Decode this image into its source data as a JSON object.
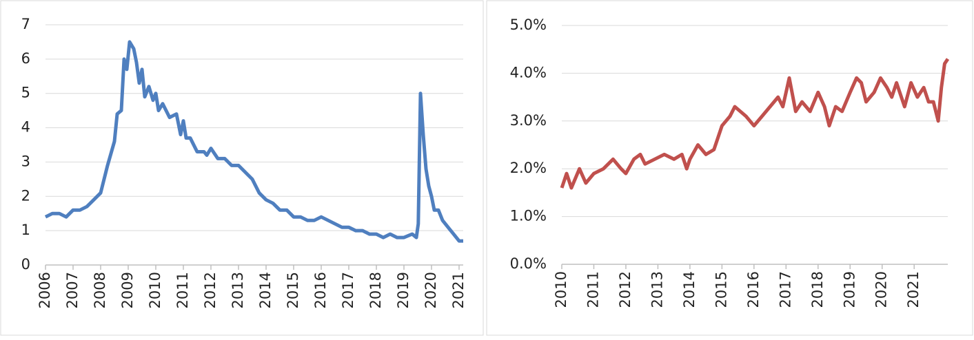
{
  "chart_data": [
    {
      "type": "line",
      "color": "#4f7fbf",
      "grid": true,
      "xlim": [
        2006,
        2021.15
      ],
      "xticks": [
        2006,
        2007,
        2008,
        2009,
        2010,
        2011,
        2012,
        2013,
        2014,
        2015,
        2016,
        2017,
        2018,
        2019,
        2020,
        2021
      ],
      "ylim": [
        0,
        7
      ],
      "yticks": [
        0,
        1,
        2,
        3,
        4,
        5,
        6,
        7
      ],
      "x": [
        2006.0,
        2006.25,
        2006.5,
        2006.75,
        2007.0,
        2007.25,
        2007.5,
        2007.75,
        2008.0,
        2008.25,
        2008.5,
        2008.6,
        2008.75,
        2008.85,
        2008.95,
        2009.05,
        2009.2,
        2009.3,
        2009.4,
        2009.5,
        2009.6,
        2009.75,
        2009.9,
        2010.0,
        2010.1,
        2010.25,
        2010.5,
        2010.75,
        2010.9,
        2011.0,
        2011.1,
        2011.25,
        2011.5,
        2011.75,
        2011.85,
        2012.0,
        2012.25,
        2012.5,
        2012.75,
        2013.0,
        2013.25,
        2013.5,
        2013.75,
        2014.0,
        2014.25,
        2014.5,
        2014.75,
        2015.0,
        2015.25,
        2015.5,
        2015.75,
        2016.0,
        2016.25,
        2016.5,
        2016.75,
        2017.0,
        2017.25,
        2017.5,
        2017.75,
        2018.0,
        2018.25,
        2018.5,
        2018.75,
        2019.0,
        2019.3,
        2019.45,
        2019.52,
        2019.6,
        2019.7,
        2019.8,
        2019.9,
        2020.0,
        2020.1,
        2020.25,
        2020.4,
        2020.6,
        2020.8,
        2021.0,
        2021.15
      ],
      "values": [
        1.4,
        1.5,
        1.5,
        1.4,
        1.6,
        1.6,
        1.7,
        1.9,
        2.1,
        2.9,
        3.6,
        4.4,
        4.5,
        6.0,
        5.7,
        6.5,
        6.3,
        5.9,
        5.3,
        5.7,
        4.9,
        5.2,
        4.8,
        5.0,
        4.5,
        4.7,
        4.3,
        4.4,
        3.8,
        4.2,
        3.7,
        3.7,
        3.3,
        3.3,
        3.2,
        3.4,
        3.1,
        3.1,
        2.9,
        2.9,
        2.7,
        2.5,
        2.1,
        1.9,
        1.8,
        1.6,
        1.6,
        1.4,
        1.4,
        1.3,
        1.3,
        1.4,
        1.3,
        1.2,
        1.1,
        1.1,
        1.0,
        1.0,
        0.9,
        0.9,
        0.8,
        0.9,
        0.8,
        0.8,
        0.9,
        0.8,
        1.2,
        5.0,
        3.8,
        2.8,
        2.3,
        2.0,
        1.6,
        1.6,
        1.3,
        1.1,
        0.9,
        0.7,
        0.7
      ]
    },
    {
      "type": "line",
      "color": "#c0504d",
      "grid": true,
      "xlim": [
        2010,
        2022.05
      ],
      "xticks": [
        2010,
        2011,
        2012,
        2013,
        2014,
        2015,
        2016,
        2017,
        2018,
        2019,
        2020,
        2021
      ],
      "ylim": [
        0,
        5
      ],
      "yticks": [
        {
          "value": 0,
          "label": "0.0%"
        },
        {
          "value": 1,
          "label": "1.0%"
        },
        {
          "value": 2,
          "label": "2.0%"
        },
        {
          "value": 3,
          "label": "3.0%"
        },
        {
          "value": 4,
          "label": "4.0%"
        },
        {
          "value": 5,
          "label": "5.0%"
        }
      ],
      "x": [
        2010.0,
        2010.15,
        2010.3,
        2010.55,
        2010.75,
        2011.0,
        2011.3,
        2011.6,
        2011.85,
        2012.0,
        2012.25,
        2012.45,
        2012.6,
        2012.9,
        2013.2,
        2013.5,
        2013.75,
        2013.9,
        2014.0,
        2014.25,
        2014.5,
        2014.75,
        2015.0,
        2015.25,
        2015.4,
        2015.75,
        2016.0,
        2016.25,
        2016.5,
        2016.75,
        2016.9,
        2017.1,
        2017.3,
        2017.5,
        2017.75,
        2018.0,
        2018.2,
        2018.35,
        2018.55,
        2018.75,
        2019.0,
        2019.2,
        2019.35,
        2019.5,
        2019.75,
        2019.95,
        2020.15,
        2020.3,
        2020.45,
        2020.7,
        2020.9,
        2021.1,
        2021.3,
        2021.45,
        2021.6,
        2021.75,
        2021.85,
        2021.95,
        2022.05
      ],
      "values": [
        1.6,
        1.9,
        1.6,
        2.0,
        1.7,
        1.9,
        2.0,
        2.2,
        2.0,
        1.9,
        2.2,
        2.3,
        2.1,
        2.2,
        2.3,
        2.2,
        2.3,
        2.0,
        2.2,
        2.5,
        2.3,
        2.4,
        2.9,
        3.1,
        3.3,
        3.1,
        2.9,
        3.1,
        3.3,
        3.5,
        3.3,
        3.9,
        3.2,
        3.4,
        3.2,
        3.6,
        3.3,
        2.9,
        3.3,
        3.2,
        3.6,
        3.9,
        3.8,
        3.4,
        3.6,
        3.9,
        3.7,
        3.5,
        3.8,
        3.3,
        3.8,
        3.5,
        3.7,
        3.4,
        3.4,
        3.0,
        3.7,
        4.2,
        4.3
      ]
    }
  ]
}
